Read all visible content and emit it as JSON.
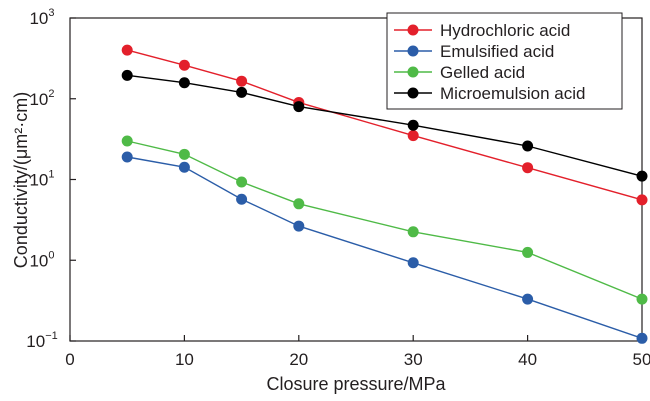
{
  "chart_data": {
    "type": "line",
    "xlabel": "Closure pressure/MPa",
    "ylabel": "Conductivity/(μm²·cm)",
    "y_scale": "log",
    "xlim": [
      0,
      50
    ],
    "ylim": [
      0.1,
      1000
    ],
    "x_ticks": [
      "0",
      "10",
      "20",
      "30",
      "40",
      "50"
    ],
    "y_ticks": [
      {
        "base": "10",
        "exp": "−1"
      },
      {
        "base": "10",
        "exp": "0"
      },
      {
        "base": "10",
        "exp": "1"
      },
      {
        "base": "10",
        "exp": "2"
      },
      {
        "base": "10",
        "exp": "3"
      }
    ],
    "legend_position": "top-right",
    "grid": false,
    "series": [
      {
        "name": "Hydrochloric acid",
        "color": "#e3202b",
        "x": [
          5,
          10,
          15,
          20,
          30,
          40,
          50
        ],
        "y": [
          400,
          260,
          165,
          90,
          35,
          14,
          5.6
        ]
      },
      {
        "name": "Emulsified acid",
        "color": "#2b5da8",
        "x": [
          5,
          10,
          15,
          20,
          30,
          40,
          50
        ],
        "y": [
          19,
          14.2,
          5.7,
          2.65,
          0.93,
          0.33,
          0.108
        ]
      },
      {
        "name": "Gelled acid",
        "color": "#4fba47",
        "x": [
          5,
          10,
          15,
          20,
          30,
          40,
          50
        ],
        "y": [
          30,
          20.5,
          9.3,
          5,
          2.25,
          1.25,
          0.33
        ]
      },
      {
        "name": "Microemulsion acid",
        "color": "#000000",
        "x": [
          5,
          10,
          15,
          20,
          30,
          40,
          50
        ],
        "y": [
          195,
          158,
          120,
          80,
          47,
          26,
          11
        ]
      }
    ]
  }
}
